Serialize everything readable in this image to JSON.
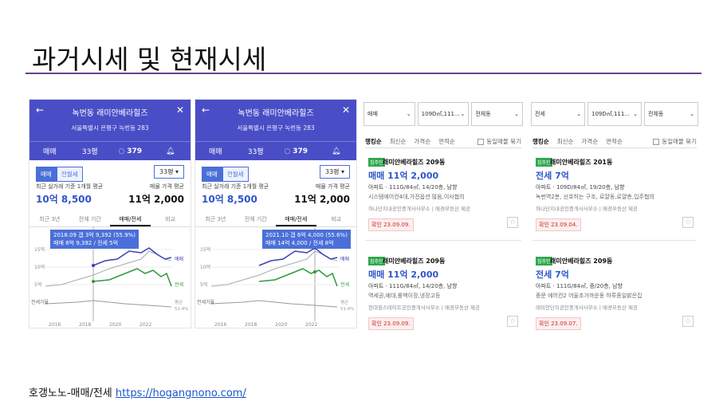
{
  "slide": {
    "title": "과거시세 및 현재시세",
    "footer_text": "호갱노노-매매/전세 ",
    "footer_link": "https://hogangnono.com/"
  },
  "phones": [
    {
      "title": "녹번동 래미안베라힐즈",
      "address": "서울특별시 은평구 녹번동 283",
      "bar": [
        "매매",
        "33평",
        "379"
      ],
      "toggle_on": "매매",
      "toggle_off": "전월세",
      "size": "33평",
      "recent_label": "최근 실거래 기준 1개월 평균",
      "recent_value": "10억 8,500",
      "ask_label": "매물 가격 평균",
      "ask_value": "11억 2,000",
      "tabs": [
        "최근 3년",
        "전체 기간",
        "매매/전세",
        "비교"
      ],
      "selected_tab": "매매/전세",
      "tooltip_1": "2018.09 갭 3억 9,392 (55.9%)",
      "tooltip_2": "매매 8억 9,392 / 전세 5억",
      "y_labels": [
        "15억",
        "10억",
        "5억"
      ],
      "x_labels": [
        "2016",
        "2018",
        "2020",
        "2022"
      ],
      "legend_sale": "매매",
      "legend_jeonse": "전세",
      "bottom_label": "전세가율",
      "avg_label": "평균",
      "avg_value": "51.4%"
    },
    {
      "title": "녹번동 래미안베라힐즈",
      "address": "서울특별시 은평구 녹번동 283",
      "bar": [
        "매매",
        "33평",
        "379"
      ],
      "toggle_on": "매매",
      "toggle_off": "전월세",
      "size": "33평",
      "recent_label": "최근 실거래 기준 1개월 평균",
      "recent_value": "10억 8,500",
      "ask_label": "매물 가격 평균",
      "ask_value": "11억 2,000",
      "tabs": [
        "최근 3년",
        "전체 기간",
        "매매/전세",
        "비교"
      ],
      "selected_tab": "매매/전세",
      "tooltip_1": "2021.10 갭 6억 4,000 (55.6%)",
      "tooltip_2": "매매 14억 4,000 / 전세 8억",
      "y_labels": [
        "15억",
        "10억",
        "5억"
      ],
      "x_labels": [
        "2016",
        "2018",
        "2020",
        "2022"
      ],
      "legend_sale": "매매",
      "legend_jeonse": "전세",
      "bottom_label": "전세가율",
      "avg_label": "평균",
      "avg_value": "51.4%"
    }
  ],
  "lists": [
    {
      "selects": [
        "매매",
        "109D㎡,111...",
        "전체동"
      ],
      "sorts": [
        "랭킹순",
        "최신순",
        "가격순",
        "면적순"
      ],
      "check_label": "동일매물 묶기",
      "cards": [
        {
          "badge": "집주인",
          "name": "래미안베라힐즈 209동",
          "price": "매매 11억 2,000",
          "spec": "아파트 · 111G/84㎡, 14/20층, 남향",
          "desc": "시스템에어컨4대,가전옵션 많음,이사협의",
          "agent": "하나단지내공인중개사사무소 | 매경부동산 제공",
          "confirm": "확인 23.09.09."
        },
        {
          "badge": "집주인",
          "name": "래미안베라힐즈 209동",
          "price": "매매 11억 2,000",
          "spec": "아파트 · 111G/84㎡, 14/20층, 남향",
          "desc": "역세권,예대,롤백이장,냉장고등",
          "agent": "현대힐스테이트공인중개사사무소 | 매경부동산 제공",
          "confirm": "확인 23.09.09."
        }
      ]
    },
    {
      "selects": [
        "전세",
        "109D㎡,111...",
        "전체동"
      ],
      "sorts": [
        "랭킹순",
        "최신순",
        "가격순",
        "면적순"
      ],
      "check_label": "동일매물 묶기",
      "cards": [
        {
          "badge": "집주인",
          "name": "래미안베라힐즈 201동",
          "price": "전세 7억",
          "spec": "아파트 · 109D/84㎡, 19/20층, 남향",
          "desc": "녹번역2분, 선호하는 구조, 로얄동,로얄층,입주협의",
          "agent": "하나단지내공인중개사사무소 | 매경부동산 제공",
          "confirm": "확인 23.09.04."
        },
        {
          "badge": "집주인",
          "name": "래미안베라힐즈 209동",
          "price": "전세 7억",
          "spec": "아파트 · 111G/84㎡, 중/20층, 남향",
          "desc": "중문 에어컨2 어울초가까운동 하루종일밝은집",
          "agent": "래미안단지공인중개사사무소 | 매경부동산 제공",
          "confirm": "확인 23.09.07."
        }
      ]
    }
  ]
}
